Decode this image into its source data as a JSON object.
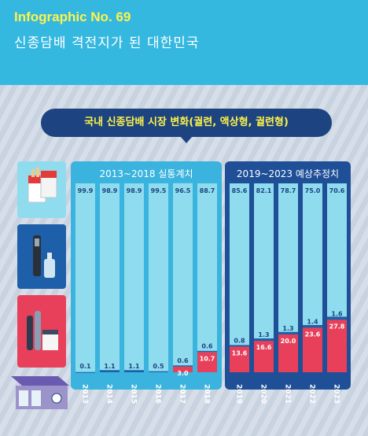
{
  "header": {
    "infographic_no": "Infographic No. 69",
    "title": "신종담배 격전지가 된 대한민국"
  },
  "bubble": {
    "text": "국내 신종담배 시장 변화(궐련, 액상형, 궐련형)"
  },
  "panels": {
    "actual_label": "2013~2018 실통계치",
    "forecast_label": "2019~2023 예상추정치"
  },
  "colors": {
    "header_bg": "#35b8e0",
    "cigarette": "#8fdcee",
    "liquid": "#1d5fa8",
    "heated": "#e8405a",
    "actual_panel": "#3ab3de",
    "forecast_panel": "#1e4f97"
  },
  "icons": [
    "cigarette-pack-icon",
    "liquid-ecig-icon",
    "heated-tobacco-icon",
    "convenience-store-icon"
  ],
  "chart_data": {
    "type": "bar",
    "stacked": true,
    "categories": [
      "2013",
      "2014",
      "2015",
      "2016",
      "2017",
      "2018",
      "2019",
      "2020",
      "2021",
      "2022",
      "2023"
    ],
    "series": [
      {
        "key": "cigarette",
        "values": [
          99.9,
          98.9,
          98.9,
          99.5,
          96.5,
          88.7,
          85.6,
          82.1,
          78.7,
          75.0,
          70.6
        ]
      },
      {
        "key": "liquid",
        "values": [
          0.1,
          1.1,
          1.1,
          0.5,
          0.6,
          0.6,
          0.8,
          1.3,
          1.3,
          1.4,
          1.6
        ]
      },
      {
        "key": "heated",
        "values": [
          0,
          0,
          0,
          0,
          3.0,
          10.7,
          13.6,
          16.6,
          20.0,
          23.6,
          27.8
        ]
      }
    ],
    "labels": {
      "cigarette": [
        "99.9",
        "98.9",
        "98.9",
        "99.5",
        "96.5",
        "88.7",
        "85.6",
        "82.1",
        "78.7",
        "75.0",
        "70.6"
      ],
      "liquid": [
        "0.1",
        "1.1",
        "1.1",
        "0.5",
        "0.6",
        "0.6",
        "0.8",
        "1.3",
        "1.3",
        "1.4",
        "1.6"
      ],
      "heated": [
        "",
        "",
        "",
        "",
        "3.0",
        "10.7",
        "13.6",
        "16.6",
        "20.0",
        "23.6",
        "27.8"
      ]
    },
    "ylim": [
      0,
      100
    ]
  }
}
